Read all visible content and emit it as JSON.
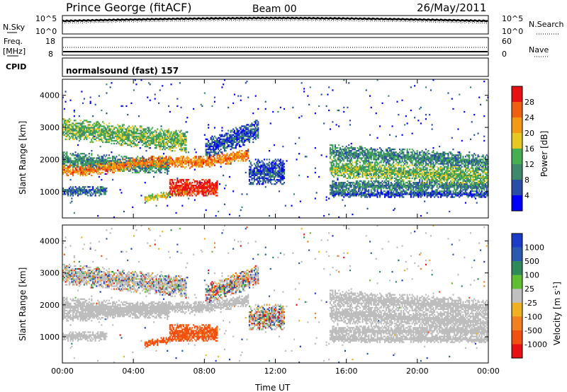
{
  "header": {
    "station": "Prince George (fitACF)",
    "beam": "Beam 00",
    "date": "26/May/2011"
  },
  "sky_panel": {
    "left_label": "N.Sky",
    "left_ticks": [
      "10^5",
      "10^0"
    ],
    "right_label": "N.Search",
    "right_ticks": [
      "10^5",
      "10^0"
    ]
  },
  "freq_panel": {
    "left_label_1": "Freq.",
    "left_label_2": "[MHz]",
    "left_ticks": [
      "18",
      "8"
    ],
    "right_label": "Nave",
    "right_ticks": [
      "60",
      "0"
    ]
  },
  "cpid": {
    "label": "CPID",
    "value": "normalsound (fast) 157"
  },
  "colors": {
    "power_scale": [
      "#0000ff",
      "#2a4ea8",
      "#3d8a6a",
      "#44b050",
      "#e6c820",
      "#f39a10",
      "#f06010",
      "#e81010"
    ],
    "velocity_scale": [
      "#1a3cc8",
      "#2a5ab0",
      "#2e8a5a",
      "#5ec030",
      "#c0c0c0",
      "#f0b020",
      "#f08020",
      "#f05010",
      "#e81010"
    ],
    "ground_scatter": "#bdbdbd"
  },
  "chart_data": [
    {
      "type": "heatmap",
      "name": "power",
      "ylabel": "Slant Range [km]",
      "yticks": [
        "1000",
        "2000",
        "3000",
        "4000"
      ],
      "ylim": [
        180,
        4500
      ],
      "xlim_hours": [
        0,
        24
      ],
      "colorbar": {
        "label": "Power [dB]",
        "ticks": [
          "4",
          "8",
          "12",
          "16",
          "20",
          "24",
          "28"
        ],
        "range": [
          0,
          32
        ]
      }
    },
    {
      "type": "heatmap",
      "name": "velocity",
      "ylabel": "Slant Range [km]",
      "yticks": [
        "1000",
        "2000",
        "3000",
        "4000"
      ],
      "ylim": [
        180,
        4500
      ],
      "xlim_hours": [
        0,
        24
      ],
      "xticks": [
        "00:00",
        "04:00",
        "08:00",
        "12:00",
        "16:00",
        "20:00",
        "00:00"
      ],
      "xlabel": "Time UT",
      "colorbar": {
        "label": "Velocity [m s-1]",
        "ticks": [
          "1000",
          "500",
          "100",
          "25",
          "-25",
          "-100",
          "-500",
          "-1000"
        ]
      }
    }
  ]
}
